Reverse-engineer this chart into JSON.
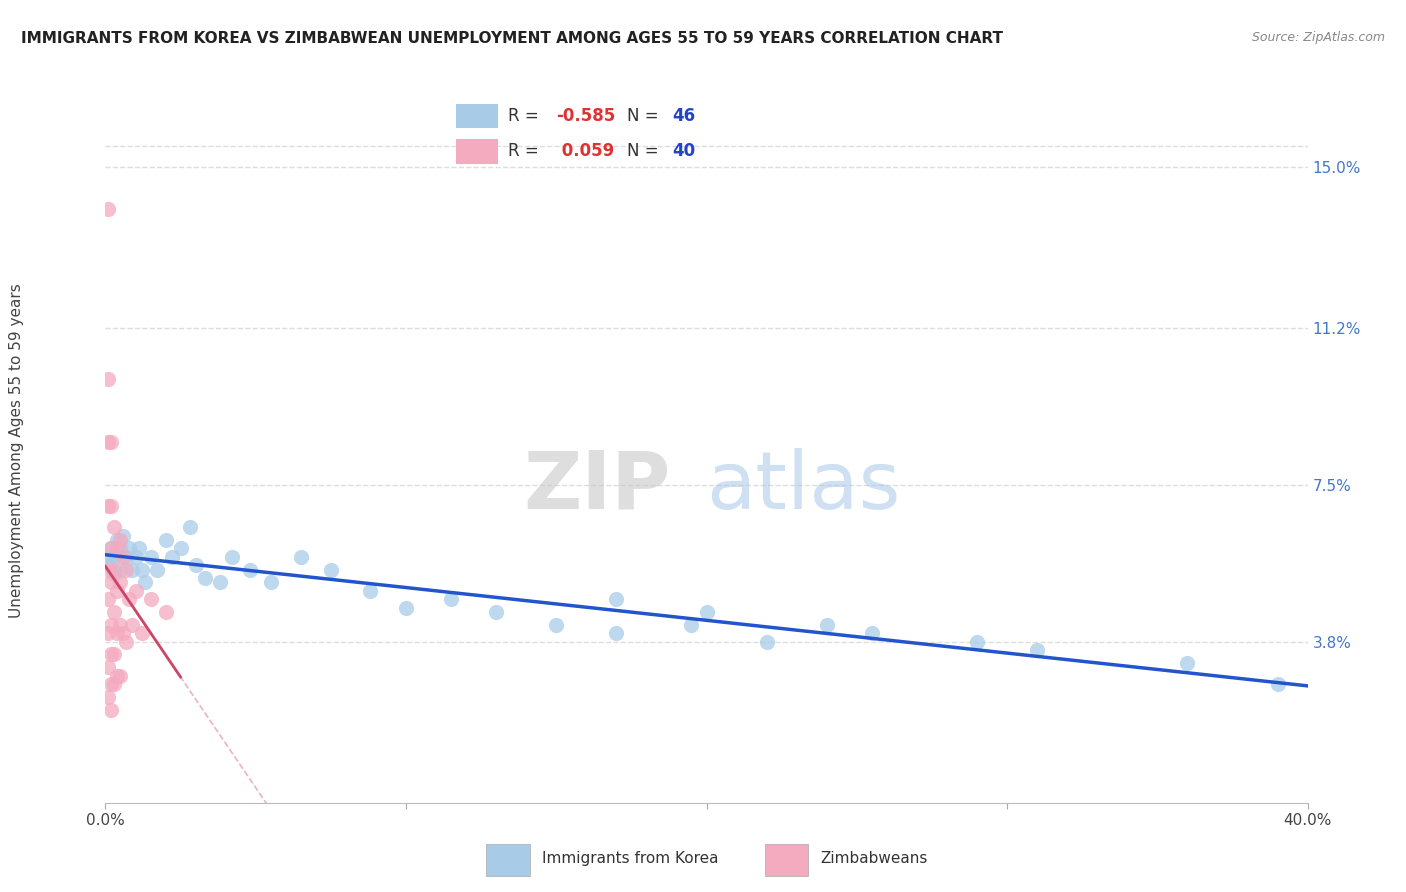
{
  "title": "IMMIGRANTS FROM KOREA VS ZIMBABWEAN UNEMPLOYMENT AMONG AGES 55 TO 59 YEARS CORRELATION CHART",
  "source": "Source: ZipAtlas.com",
  "ylabel": "Unemployment Among Ages 55 to 59 years",
  "xlim": [
    0.0,
    0.4
  ],
  "ylim": [
    0.0,
    0.162
  ],
  "xticks": [
    0.0,
    0.1,
    0.2,
    0.3,
    0.4
  ],
  "xticklabels": [
    "0.0%",
    "",
    "",
    "",
    "40.0%"
  ],
  "ytick_right": [
    0.038,
    0.075,
    0.112,
    0.15
  ],
  "ytick_right_labels": [
    "3.8%",
    "7.5%",
    "11.2%",
    "15.0%"
  ],
  "korea_R": "-0.585",
  "korea_N": "46",
  "zimb_R": "0.059",
  "zimb_N": "40",
  "korea_color": "#a8cce8",
  "zimb_color": "#f4aabf",
  "korea_line_color": "#2255cc",
  "zimb_line_color": "#cc4466",
  "zimb_dash_color": "#e8a0b0",
  "watermark_color": "#d8e8f0",
  "watermark_color2": "#c8d8e8",
  "background_color": "#ffffff",
  "grid_color": "#dddddd",
  "korea_scatter_x": [
    0.001,
    0.002,
    0.002,
    0.003,
    0.003,
    0.004,
    0.005,
    0.005,
    0.006,
    0.007,
    0.008,
    0.009,
    0.01,
    0.011,
    0.012,
    0.013,
    0.015,
    0.017,
    0.02,
    0.022,
    0.025,
    0.028,
    0.03,
    0.033,
    0.038,
    0.042,
    0.048,
    0.055,
    0.065,
    0.075,
    0.088,
    0.1,
    0.115,
    0.13,
    0.15,
    0.17,
    0.195,
    0.22,
    0.255,
    0.29,
    0.17,
    0.2,
    0.24,
    0.31,
    0.36,
    0.39
  ],
  "korea_scatter_y": [
    0.056,
    0.06,
    0.058,
    0.054,
    0.058,
    0.062,
    0.055,
    0.06,
    0.063,
    0.058,
    0.06,
    0.055,
    0.058,
    0.06,
    0.055,
    0.052,
    0.058,
    0.055,
    0.062,
    0.058,
    0.06,
    0.065,
    0.056,
    0.053,
    0.052,
    0.058,
    0.055,
    0.052,
    0.058,
    0.055,
    0.05,
    0.046,
    0.048,
    0.045,
    0.042,
    0.04,
    0.042,
    0.038,
    0.04,
    0.038,
    0.048,
    0.045,
    0.042,
    0.036,
    0.033,
    0.028
  ],
  "zimb_scatter_x": [
    0.001,
    0.001,
    0.001,
    0.001,
    0.001,
    0.001,
    0.001,
    0.001,
    0.001,
    0.002,
    0.002,
    0.002,
    0.002,
    0.002,
    0.002,
    0.002,
    0.002,
    0.003,
    0.003,
    0.003,
    0.003,
    0.003,
    0.004,
    0.004,
    0.004,
    0.004,
    0.005,
    0.005,
    0.005,
    0.005,
    0.006,
    0.006,
    0.007,
    0.007,
    0.008,
    0.009,
    0.01,
    0.012,
    0.015,
    0.02
  ],
  "zimb_scatter_y": [
    0.14,
    0.1,
    0.085,
    0.07,
    0.055,
    0.048,
    0.04,
    0.032,
    0.025,
    0.085,
    0.07,
    0.06,
    0.052,
    0.042,
    0.035,
    0.028,
    0.022,
    0.065,
    0.055,
    0.045,
    0.035,
    0.028,
    0.06,
    0.05,
    0.04,
    0.03,
    0.062,
    0.052,
    0.042,
    0.03,
    0.058,
    0.04,
    0.055,
    0.038,
    0.048,
    0.042,
    0.05,
    0.04,
    0.048,
    0.045
  ]
}
